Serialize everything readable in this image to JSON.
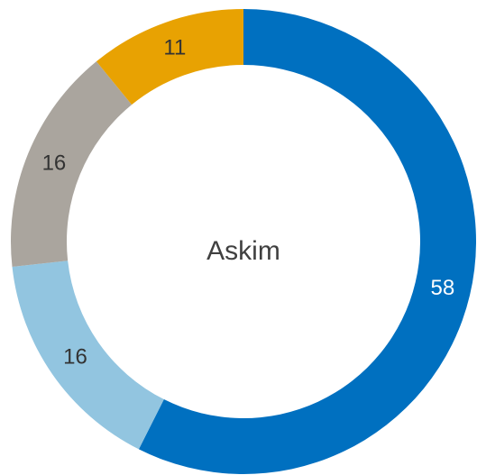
{
  "chart_data": {
    "type": "donut",
    "title": "Askim",
    "categories": [
      null,
      null,
      null,
      null
    ],
    "values": [
      58,
      16,
      16,
      11
    ],
    "colors": [
      "#0070c0",
      "#92c5e0",
      "#aaa59e",
      "#e8a202"
    ]
  }
}
